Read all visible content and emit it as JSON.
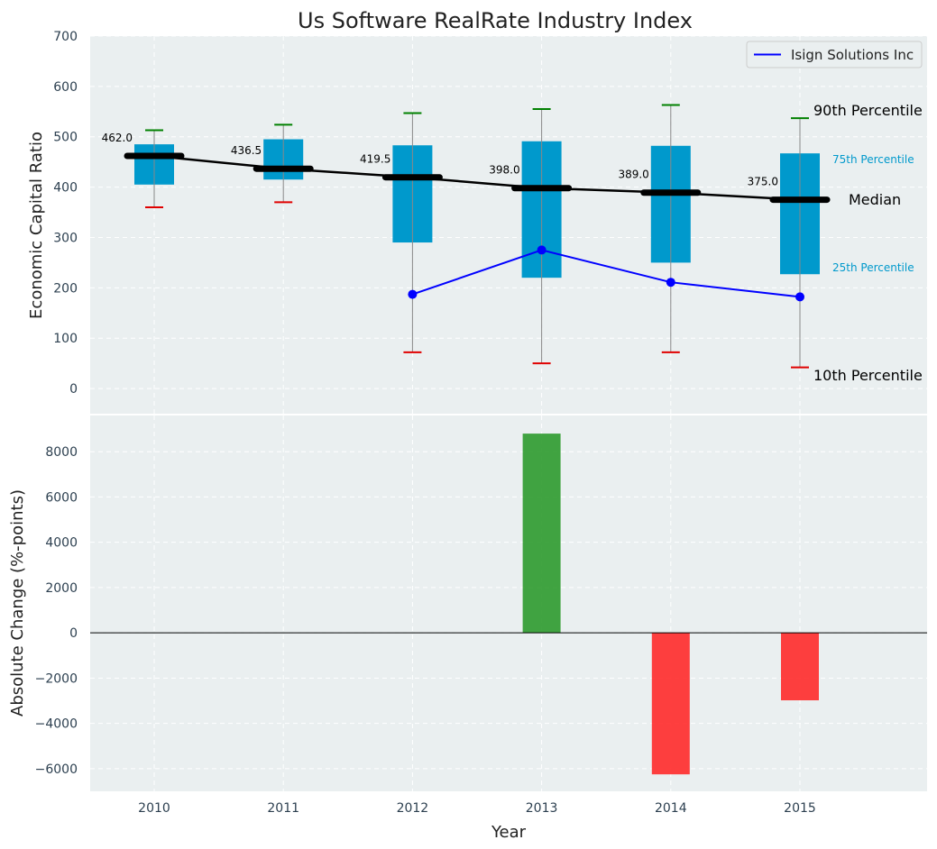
{
  "chart_data": [
    {
      "type": "box",
      "title": "Us Software RealRate Industry Index",
      "xlabel": "",
      "ylabel": "Economic Capital Ratio",
      "ylim": [
        -50,
        700
      ],
      "yticks": [
        0,
        100,
        200,
        300,
        400,
        500,
        600,
        700
      ],
      "categories": [
        "2010",
        "2011",
        "2012",
        "2013",
        "2014",
        "2015"
      ],
      "p10": [
        360,
        370,
        72,
        50,
        72,
        42
      ],
      "p25": [
        405,
        415,
        290,
        220,
        250,
        227
      ],
      "median": [
        462.0,
        436.5,
        419.5,
        398.0,
        389.0,
        375.0
      ],
      "median_labels": [
        "462.0",
        "436.5",
        "419.5",
        "398.0",
        "389.0",
        "375.0"
      ],
      "p75": [
        485,
        495,
        483,
        491,
        482,
        467
      ],
      "p90": [
        513,
        524,
        547,
        555,
        563,
        537
      ],
      "series": [
        {
          "name": "Isign Solutions Inc",
          "values": [
            null,
            null,
            187,
            275,
            211,
            182
          ],
          "color": "#0000ff"
        }
      ],
      "legend": {
        "position": "top-right",
        "entries": [
          "Isign Solutions Inc"
        ]
      },
      "annotations": {
        "p90": "90th Percentile",
        "p75": "75th Percentile",
        "median": "Median",
        "p25": "25th Percentile",
        "p10": "10th Percentile"
      },
      "grid": true
    },
    {
      "type": "bar",
      "title": "",
      "xlabel": "Year",
      "ylabel": "Absolute Change (%-points)",
      "ylim": [
        -7000,
        9600
      ],
      "yticks": [
        -6000,
        -4000,
        -2000,
        0,
        2000,
        4000,
        6000,
        8000
      ],
      "ytick_labels": [
        "−6000",
        "−4000",
        "−2000",
        "0",
        "2000",
        "4000",
        "6000",
        "8000"
      ],
      "categories": [
        "2010",
        "2011",
        "2012",
        "2013",
        "2014",
        "2015"
      ],
      "values": [
        0,
        0,
        0,
        8800,
        -6250,
        -2980
      ],
      "grid": true
    }
  ],
  "colors": {
    "box": "#0099cc",
    "median": "#000000",
    "p90_cap": "#008000",
    "p10_cap": "#e00000",
    "whisker": "#888888",
    "company": "#0000ff",
    "pos_bar": "#2e9a2e",
    "neg_bar": "#ff2a2a",
    "plot_bg": "#eaeff0",
    "tick": "#2d4050"
  }
}
